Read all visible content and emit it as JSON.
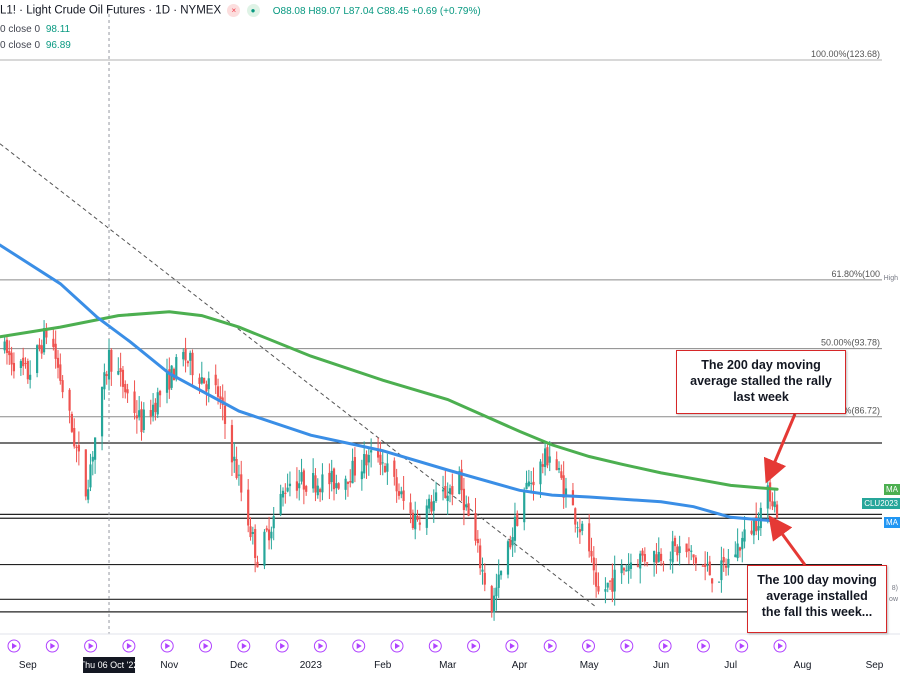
{
  "header": {
    "symbol": "L1! · Light Crude Oil Futures · 1D · NYMEX",
    "ohlc": "O88.08 H89.07 L87.04 C88.45 +0.69 (+0.79%)"
  },
  "indicators": [
    {
      "label": "0 close 0",
      "value": "98.11"
    },
    {
      "label": "0 close 0",
      "value": "96.89"
    }
  ],
  "fib_levels": [
    {
      "label": "100.00%(123.68)",
      "y": 123.68
    },
    {
      "label": "61.80%(100",
      "y": 100.9
    },
    {
      "label": "50.00%(93.78)",
      "y": 93.78
    },
    {
      "label": "8.20%(86.72)",
      "y": 86.72
    }
  ],
  "extra_levels": [
    84.0,
    76.6,
    76.2,
    71.4,
    67.8,
    66.5
  ],
  "price_tags": [
    {
      "text": "MA",
      "price": 79.2,
      "color": "#4caf50"
    },
    {
      "text": "CLU2023",
      "price": 77.8,
      "color": "#26a69a"
    },
    {
      "text": "MA",
      "price": 75.8,
      "color": "#2196f3"
    }
  ],
  "side_labels": [
    {
      "text": "High",
      "price": 100.9
    },
    {
      "text": "8)",
      "price": 68.8
    },
    {
      "text": "ow",
      "price": 67.6
    }
  ],
  "callouts": {
    "top": "The 200 day moving average stalled the rally last week",
    "bottom": "The 100 day moving average installed the fall this week..."
  },
  "crosshair_date": "Thu 06 Oct '22",
  "x_axis": [
    "Sep",
    "Nov",
    "Dec",
    "2023",
    "Feb",
    "Mar",
    "Apr",
    "May",
    "Jun",
    "Jul",
    "Aug",
    "Sep"
  ],
  "chart_data": {
    "type": "candlestick",
    "title": "Light Crude Oil Futures · 1D · NYMEX",
    "ylim": [
      64.5,
      130
    ],
    "x_range": [
      "2022-08-20",
      "2023-09-12"
    ],
    "series": [
      {
        "name": "MA",
        "color": "#4caf50",
        "points": [
          [
            "2022-08-20",
            95.0
          ],
          [
            "2022-09-15",
            96.0
          ],
          [
            "2022-10-10",
            97.2
          ],
          [
            "2022-11-01",
            97.6
          ],
          [
            "2022-11-15",
            97.2
          ],
          [
            "2022-12-01",
            96.0
          ],
          [
            "2023-01-01",
            93.0
          ],
          [
            "2023-02-01",
            90.5
          ],
          [
            "2023-03-01",
            88.5
          ],
          [
            "2023-04-01",
            85.2
          ],
          [
            "2023-04-15",
            83.8
          ],
          [
            "2023-05-01",
            82.6
          ],
          [
            "2023-05-15",
            81.8
          ],
          [
            "2023-06-01",
            80.9
          ],
          [
            "2023-06-15",
            80.3
          ],
          [
            "2023-07-01",
            79.6
          ],
          [
            "2023-07-21",
            79.2
          ]
        ]
      },
      {
        "name": "MA",
        "color": "#3a8ee6",
        "points": [
          [
            "2022-08-20",
            104.5
          ],
          [
            "2022-09-15",
            100.5
          ],
          [
            "2022-10-01",
            97.0
          ],
          [
            "2022-10-15",
            94.5
          ],
          [
            "2022-11-01",
            91.2
          ],
          [
            "2022-12-01",
            87.3
          ],
          [
            "2023-01-01",
            84.8
          ],
          [
            "2023-02-01",
            83.2
          ],
          [
            "2023-03-01",
            81.2
          ],
          [
            "2023-04-01",
            79.1
          ],
          [
            "2023-04-15",
            78.6
          ],
          [
            "2023-05-01",
            78.4
          ],
          [
            "2023-06-01",
            77.9
          ],
          [
            "2023-06-15",
            77.4
          ],
          [
            "2023-07-01",
            76.3
          ],
          [
            "2023-07-21",
            75.9
          ]
        ]
      }
    ],
    "candles_anchor": [
      [
        "2022-08-20",
        94
      ],
      [
        "2022-09-01",
        91
      ],
      [
        "2022-09-10",
        96
      ],
      [
        "2022-09-26",
        79
      ],
      [
        "2022-10-06",
        93
      ],
      [
        "2022-10-20",
        86
      ],
      [
        "2022-11-07",
        93
      ],
      [
        "2022-11-22",
        89
      ],
      [
        "2022-12-09",
        72
      ],
      [
        "2022-12-22",
        80
      ],
      [
        "2023-01-12",
        80
      ],
      [
        "2023-01-30",
        83
      ],
      [
        "2023-02-14",
        76
      ],
      [
        "2023-03-06",
        80
      ],
      [
        "2023-03-20",
        67
      ],
      [
        "2023-04-03",
        79
      ],
      [
        "2023-04-14",
        83
      ],
      [
        "2023-05-01",
        73
      ],
      [
        "2023-05-04",
        68
      ],
      [
        "2023-05-20",
        72
      ],
      [
        "2023-06-10",
        73
      ],
      [
        "2023-06-25",
        70
      ],
      [
        "2023-07-12",
        76
      ],
      [
        "2023-07-18",
        79
      ],
      [
        "2023-07-21",
        77
      ]
    ],
    "trendline": [
      [
        "2022-08-20",
        115
      ],
      [
        "2023-05-04",
        67
      ]
    ],
    "current_price": 88.45
  }
}
